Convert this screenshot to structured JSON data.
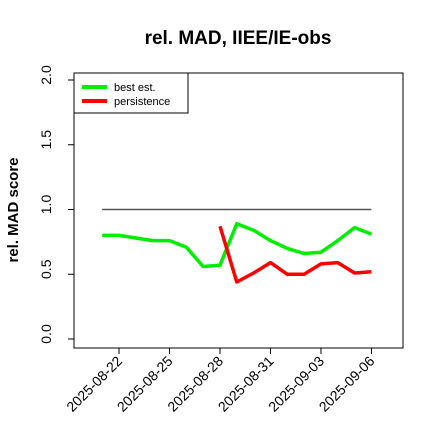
{
  "chart_data": {
    "type": "line",
    "title": "rel. MAD, IIEE/IE-obs",
    "xlabel": "",
    "ylabel": "rel. MAD score",
    "ylim": [
      0,
      2
    ],
    "yticks": [
      "0.0",
      "0.5",
      "1.0",
      "1.5",
      "2.0"
    ],
    "xticks": [
      "2025-08-22",
      "2025-08-25",
      "2025-08-28",
      "2025-08-31",
      "2025-09-03",
      "2025-09-06"
    ],
    "grid": false,
    "legend_position": "top-left",
    "reference_line": {
      "y": 1.0,
      "x_start": "2025-08-21",
      "x_end": "2025-09-06",
      "color": "#555555"
    },
    "series": [
      {
        "name": "best est.",
        "color": "#00ee00",
        "points": [
          [
            "2025-08-21",
            0.8
          ],
          [
            "2025-08-22",
            0.8
          ],
          [
            "2025-08-23",
            0.78
          ],
          [
            "2025-08-24",
            0.76
          ],
          [
            "2025-08-25",
            0.76
          ],
          [
            "2025-08-26",
            0.71
          ],
          [
            "2025-08-27",
            0.56
          ],
          [
            "2025-08-28",
            0.57
          ],
          [
            "2025-08-29",
            0.89
          ],
          [
            "2025-08-30",
            0.84
          ],
          [
            "2025-08-31",
            0.76
          ],
          [
            "2025-09-01",
            0.7
          ],
          [
            "2025-09-02",
            0.66
          ],
          [
            "2025-09-03",
            0.67
          ],
          [
            "2025-09-04",
            0.76
          ],
          [
            "2025-09-05",
            0.86
          ],
          [
            "2025-09-06",
            0.81
          ]
        ]
      },
      {
        "name": "persistence",
        "color": "#ff0000",
        "points": [
          [
            "2025-08-28",
            0.87
          ],
          [
            "2025-08-29",
            0.44
          ],
          [
            "2025-08-30",
            0.51
          ],
          [
            "2025-08-31",
            0.59
          ],
          [
            "2025-09-01",
            0.5
          ],
          [
            "2025-09-02",
            0.5
          ],
          [
            "2025-09-03",
            0.58
          ],
          [
            "2025-09-04",
            0.59
          ],
          [
            "2025-09-05",
            0.51
          ],
          [
            "2025-09-06",
            0.52
          ]
        ]
      }
    ]
  }
}
